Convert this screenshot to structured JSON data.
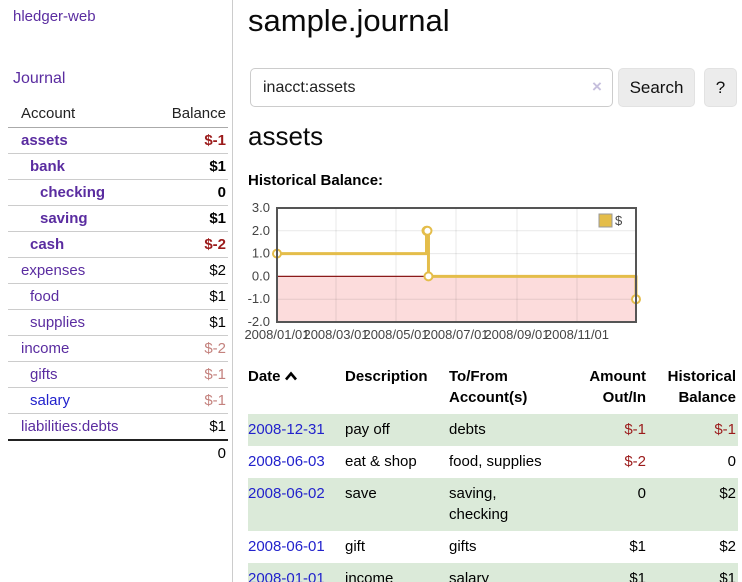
{
  "sidebar": {
    "app_title": "hledger-web",
    "nav": {
      "journal": "Journal"
    },
    "accounts_table": {
      "headers": {
        "account": "Account",
        "balance": "Balance"
      },
      "rows": [
        {
          "name": "assets",
          "balance": "$-1"
        },
        {
          "name": "bank",
          "balance": "$1"
        },
        {
          "name": "checking",
          "balance": "0"
        },
        {
          "name": "saving",
          "balance": "$1"
        },
        {
          "name": "cash",
          "balance": "$-2"
        },
        {
          "name": "expenses",
          "balance": "$2"
        },
        {
          "name": "food",
          "balance": "$1"
        },
        {
          "name": "supplies",
          "balance": "$1"
        },
        {
          "name": "income",
          "balance": "$-2"
        },
        {
          "name": "gifts",
          "balance": "$-1"
        },
        {
          "name": "salary",
          "balance": "$-1"
        },
        {
          "name": "liabilities:debts",
          "balance": "$1"
        }
      ],
      "total": "0"
    }
  },
  "main": {
    "title": "sample.journal",
    "search": {
      "value": "inacct:assets",
      "clear_label": "×",
      "button_label": "Search",
      "help_label": "?"
    },
    "account_heading": "assets",
    "chart_label": "Historical Balance:",
    "register_table": {
      "headers": {
        "date": "Date",
        "description": "Description",
        "accounts": "To/From Account(s)",
        "amount": "Amount Out/In",
        "balance": "Historical Balance"
      },
      "rows": [
        {
          "date": "2008-12-31",
          "description": "pay off",
          "accounts": "debts",
          "amount": "$-1",
          "balance": "$-1"
        },
        {
          "date": "2008-06-03",
          "description": "eat & shop",
          "accounts": "food, supplies",
          "amount": "$-2",
          "balance": "0"
        },
        {
          "date": "2008-06-02",
          "description": "save",
          "accounts": "saving, checking",
          "amount": "0",
          "balance": "$2"
        },
        {
          "date": "2008-06-01",
          "description": "gift",
          "accounts": "gifts",
          "amount": "$1",
          "balance": "$2"
        },
        {
          "date": "2008-01-01",
          "description": "income",
          "accounts": "salary",
          "amount": "$1",
          "balance": "$1"
        }
      ]
    }
  },
  "chart_data": {
    "type": "line",
    "step": true,
    "title": "Historical Balance",
    "xlabel": "",
    "ylabel": "",
    "ylim": [
      -2,
      3
    ],
    "yticks": [
      3,
      2,
      1,
      0,
      -1,
      -2
    ],
    "xlim": [
      "2008-01-01",
      "2008-12-31"
    ],
    "xticks": [
      {
        "pos": "2008-01-01",
        "label": "2008/01/01"
      },
      {
        "pos": "2008-03-01",
        "label": "2008/03/01"
      },
      {
        "pos": "2008-05-01",
        "label": "2008/05/01"
      },
      {
        "pos": "2008-07-01",
        "label": "2008/07/01"
      },
      {
        "pos": "2008-09-01",
        "label": "2008/09/01"
      },
      {
        "pos": "2008-11-01",
        "label": "2008/11/01"
      }
    ],
    "legend_position": "top-right",
    "grid": true,
    "negative_fill": "#fcdcdc",
    "zero_line_color": "#8b1a1a",
    "series": [
      {
        "name": "$",
        "color": "#e4bd4a",
        "points": [
          {
            "x": "2008-01-01",
            "y": 1
          },
          {
            "x": "2008-06-01",
            "y": 2
          },
          {
            "x": "2008-06-02",
            "y": 2
          },
          {
            "x": "2008-06-03",
            "y": 0
          },
          {
            "x": "2008-12-31",
            "y": -1
          }
        ]
      }
    ]
  },
  "colors": {
    "link_purple": "#5a2ca0",
    "link_blue": "#2222cc",
    "negative_strong": "#9b1b1b",
    "negative_soft": "#c4827e",
    "row_green": "#dbead9",
    "chart_line": "#e4bd4a",
    "chart_negative_fill": "#fcdcdc"
  }
}
